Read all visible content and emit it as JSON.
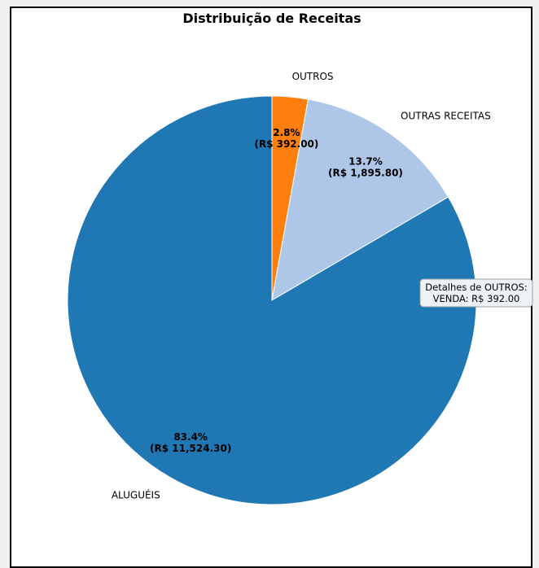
{
  "chart_data": {
    "type": "pie",
    "title": "Distribuição de Receitas",
    "slices": [
      {
        "label": "OUTROS",
        "value": 392.0,
        "percent_label": "2.8%",
        "amount_label": "(R$ 392.00)",
        "color": "#ff7f0e"
      },
      {
        "label": "OUTRAS RECEITAS",
        "value": 1895.8,
        "percent_label": "13.7%",
        "amount_label": "(R$ 1,895.80)",
        "color": "#aec7e8"
      },
      {
        "label": "ALUGUÉIS",
        "value": 11524.3,
        "percent_label": "83.4%",
        "amount_label": "(R$ 11,524.30)",
        "color": "#1f77b4"
      }
    ],
    "annotation": {
      "line1": "Detalhes de OUTROS:",
      "line2": "VENDA: R$ 392.00"
    }
  }
}
